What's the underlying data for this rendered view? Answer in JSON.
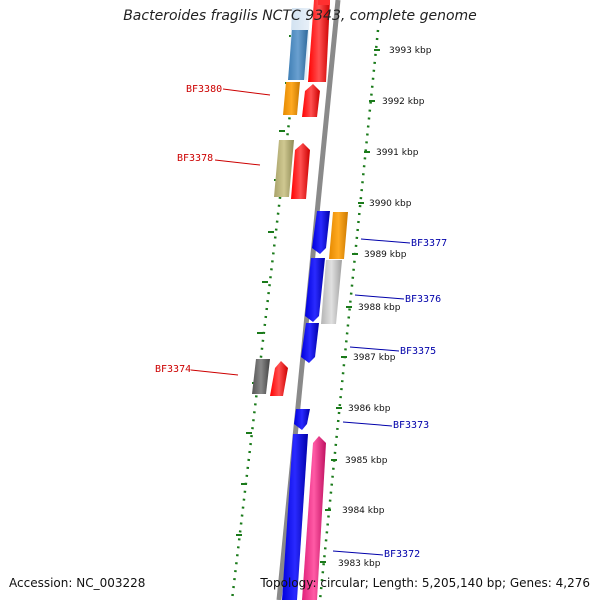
{
  "title": "Bacteroides fragilis NCTC 9343, complete genome",
  "footer": {
    "accession": "Accession: NC_003228",
    "topology": "Topology: circular; Length: 5,205,140 bp; Genes: 4,276"
  },
  "colors": {
    "backbone": "#8a8a8a",
    "tick": "#1a7a1a",
    "left_label": "#cc0000",
    "right_label": "#0000aa"
  },
  "ruler_labels": [
    "3993 kbp",
    "3992 kbp",
    "3991 kbp",
    "3990 kbp",
    "3989 kbp",
    "3988 kbp",
    "3987 kbp",
    "3986 kbp",
    "3985 kbp",
    "3984 kbp",
    "3983 kbp"
  ],
  "gene_labels": {
    "left": [
      "BF3380",
      "BF3378",
      "BF3374"
    ],
    "right": [
      "BF3377",
      "BF3376",
      "BF3375",
      "BF3373",
      "BF3372"
    ]
  }
}
